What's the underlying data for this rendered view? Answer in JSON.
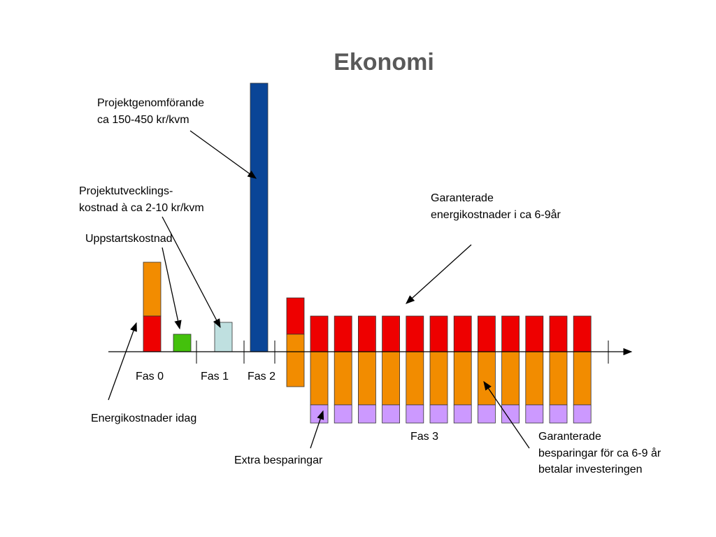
{
  "title": "Ekonomi",
  "phases": [
    "Fas 0",
    "Fas 1",
    "Fas 2",
    "Fas 3"
  ],
  "annotations": [
    {
      "lines": [
        "Projektgenomförande",
        "ca 150-450 kr/kvm"
      ]
    },
    {
      "lines": [
        "Projektutvecklings-",
        "kostnad à ca 2-10 kr/kvm"
      ]
    },
    {
      "lines": [
        "Uppstartskostnad"
      ]
    },
    {
      "lines": [
        "Garanterade",
        "energikostnader i ca 6-9år"
      ]
    },
    {
      "lines": [
        "Energikostnader idag"
      ]
    },
    {
      "lines": [
        "Extra besparingar"
      ]
    },
    {
      "lines": [
        "Garanterade",
        "besparingar för ca 6-9 år",
        "betalar investeringen"
      ]
    }
  ]
}
